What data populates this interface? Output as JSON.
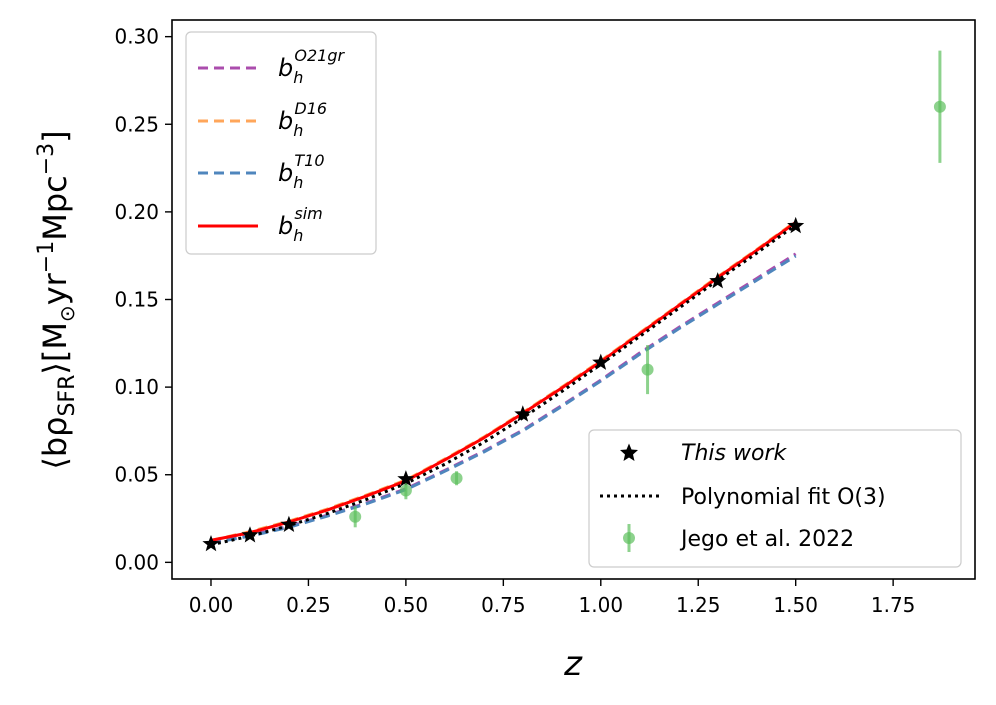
{
  "chart_data": {
    "type": "line",
    "xlabel": "z",
    "ylabel": {
      "prefix": "⟨bρ",
      "subscript": "SFR",
      "middle": "⟩[M",
      "sun": "⊙",
      "yr": "yr",
      "exp1": "−1",
      "mpc": "Mpc",
      "exp2": "−3",
      "close": "]"
    },
    "xlim": [
      -0.1,
      1.96
    ],
    "ylim": [
      -0.0095,
      0.3095
    ],
    "xticks": [
      0.0,
      0.25,
      0.5,
      0.75,
      1.0,
      1.25,
      1.5,
      1.75
    ],
    "xtick_labels": [
      "0.00",
      "0.25",
      "0.50",
      "0.75",
      "1.00",
      "1.25",
      "1.50",
      "1.75"
    ],
    "yticks": [
      0.0,
      0.05,
      0.1,
      0.15,
      0.2,
      0.25,
      0.3
    ],
    "ytick_labels": [
      "0.00",
      "0.05",
      "0.10",
      "0.15",
      "0.20",
      "0.25",
      "0.30"
    ],
    "series": [
      {
        "name": "b_h^O21gr",
        "base": "b",
        "sub": "h",
        "sup": "O21gr",
        "color": "#ab4dad",
        "style": "dashed",
        "x": [
          0.0,
          0.1,
          0.2,
          0.3,
          0.4,
          0.5,
          0.6,
          0.7,
          0.8,
          0.9,
          1.0,
          1.1,
          1.2,
          1.3,
          1.4,
          1.5
        ],
        "y": [
          0.0115,
          0.0155,
          0.0205,
          0.027,
          0.034,
          0.042,
          0.0525,
          0.0635,
          0.0755,
          0.0895,
          0.104,
          0.1195,
          0.134,
          0.148,
          0.162,
          0.176
        ]
      },
      {
        "name": "b_h^D16",
        "base": "b",
        "sub": "h",
        "sup": "D16",
        "color": "#ffa65a",
        "style": "dashed",
        "x": [
          0.0,
          0.1,
          0.2,
          0.3,
          0.4,
          0.5,
          0.6,
          0.7,
          0.8,
          0.9,
          1.0,
          1.1,
          1.2,
          1.3,
          1.4,
          1.5
        ],
        "y": [
          0.0125,
          0.0175,
          0.0235,
          0.0305,
          0.0385,
          0.047,
          0.059,
          0.0715,
          0.0855,
          0.1,
          0.115,
          0.131,
          0.147,
          0.163,
          0.1785,
          0.1945
        ]
      },
      {
        "name": "b_h^T10",
        "base": "b",
        "sub": "h",
        "sup": "T10",
        "color": "#4f86bd",
        "style": "dashed",
        "x": [
          0.0,
          0.1,
          0.2,
          0.3,
          0.4,
          0.5,
          0.6,
          0.7,
          0.8,
          0.9,
          1.0,
          1.1,
          1.2,
          1.3,
          1.4,
          1.5
        ],
        "y": [
          0.011,
          0.015,
          0.02,
          0.0265,
          0.0335,
          0.0415,
          0.052,
          0.063,
          0.075,
          0.089,
          0.1035,
          0.1188,
          0.1333,
          0.1472,
          0.161,
          0.1748
        ]
      },
      {
        "name": "b_h^sim",
        "base": "b",
        "sub": "h",
        "sup": "sim",
        "color": "#ff0000",
        "style": "solid",
        "x": [
          0.0,
          0.1,
          0.2,
          0.3,
          0.4,
          0.5,
          0.6,
          0.7,
          0.8,
          0.9,
          1.0,
          1.1,
          1.2,
          1.3,
          1.4,
          1.5
        ],
        "y": [
          0.0125,
          0.017,
          0.023,
          0.03,
          0.038,
          0.0465,
          0.0585,
          0.071,
          0.085,
          0.0995,
          0.1145,
          0.1305,
          0.1465,
          0.1625,
          0.178,
          0.194
        ]
      }
    ],
    "poly_fit": {
      "label": "Polynomial fit O(3)",
      "color": "#000000",
      "x": [
        0.0,
        0.1,
        0.2,
        0.3,
        0.4,
        0.5,
        0.6,
        0.7,
        0.8,
        0.9,
        1.0,
        1.1,
        1.2,
        1.3,
        1.4,
        1.5
      ],
      "y": [
        0.01,
        0.015,
        0.021,
        0.028,
        0.036,
        0.045,
        0.056,
        0.0685,
        0.0825,
        0.0975,
        0.113,
        0.129,
        0.145,
        0.161,
        0.1765,
        0.1925
      ]
    },
    "this_work": {
      "label": "This work",
      "color": "#000000",
      "x": [
        0.0,
        0.1,
        0.2,
        0.5,
        0.8,
        1.0,
        1.3,
        1.5
      ],
      "y": [
        0.0105,
        0.0155,
        0.0215,
        0.0475,
        0.0845,
        0.114,
        0.1605,
        0.192
      ]
    },
    "jego": {
      "label": "Jego et al. 2022",
      "color": "#5cbf5c",
      "x": [
        0.37,
        0.5,
        0.63,
        1.12,
        1.87
      ],
      "y": [
        0.026,
        0.041,
        0.048,
        0.11,
        0.26
      ],
      "yerr": [
        0.006,
        0.005,
        0.004,
        0.014,
        0.032
      ]
    }
  }
}
